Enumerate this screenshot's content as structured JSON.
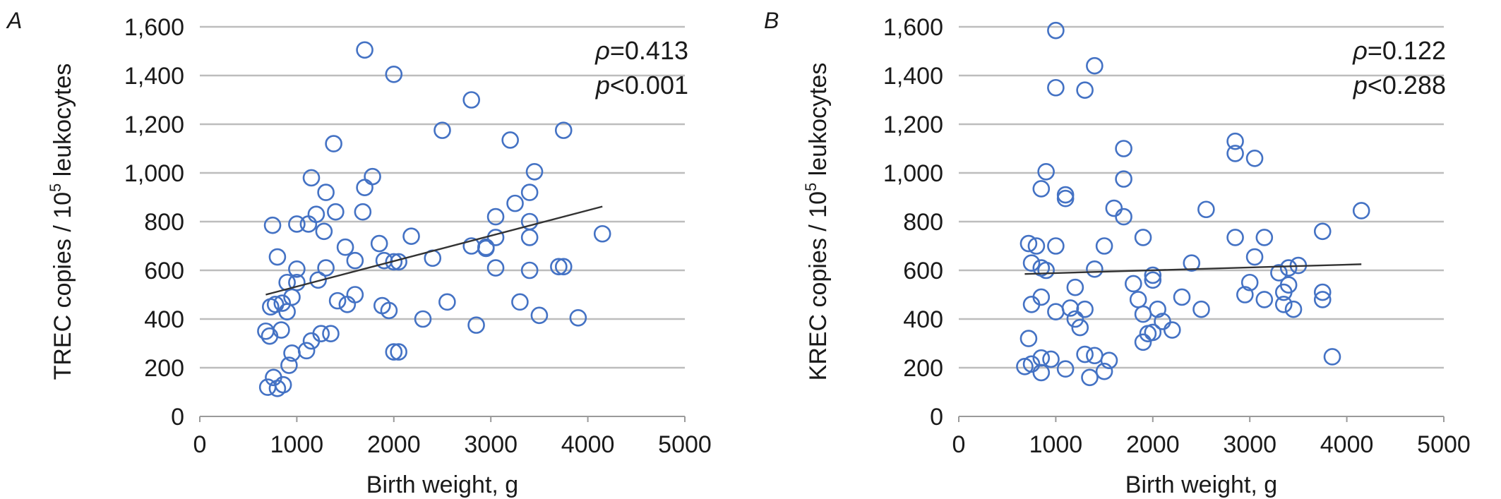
{
  "chart_data": [
    {
      "type": "scatter",
      "panel_label": "A",
      "xlabel": "Birth weight, g",
      "ylabel_main": "TREC copies / 10",
      "ylabel_sup": "5",
      "ylabel_tail": " leukocytes",
      "xlim": [
        0,
        5000
      ],
      "ylim": [
        0,
        1600
      ],
      "x_ticks": [
        "0",
        "1000",
        "2000",
        "3000",
        "4000",
        "5000"
      ],
      "y_ticks": [
        "0",
        "200",
        "400",
        "600",
        "800",
        "1,000",
        "1,200",
        "1,400",
        "1,600"
      ],
      "grid": true,
      "stat_rho_symbol": "ρ",
      "stat_rho": "=0.413",
      "stat_p_symbol": "p",
      "stat_p": "<0.001",
      "trendline": {
        "x": [
          680,
          4150
        ],
        "y": [
          500,
          862
        ]
      },
      "marker_color": "#4472c4",
      "points": [
        [
          1700,
          1505
        ],
        [
          2000,
          1405
        ],
        [
          2800,
          1300
        ],
        [
          2500,
          1175
        ],
        [
          3750,
          1175
        ],
        [
          1380,
          1120
        ],
        [
          3200,
          1135
        ],
        [
          3450,
          1005
        ],
        [
          1150,
          980
        ],
        [
          1780,
          985
        ],
        [
          1700,
          940
        ],
        [
          1300,
          920
        ],
        [
          3400,
          920
        ],
        [
          3250,
          875
        ],
        [
          3050,
          820
        ],
        [
          1200,
          830
        ],
        [
          1400,
          840
        ],
        [
          1680,
          840
        ],
        [
          3400,
          800
        ],
        [
          1000,
          790
        ],
        [
          1120,
          790
        ],
        [
          750,
          785
        ],
        [
          1280,
          760
        ],
        [
          3050,
          735
        ],
        [
          3400,
          735
        ],
        [
          2180,
          740
        ],
        [
          2800,
          700
        ],
        [
          2950,
          695
        ],
        [
          1850,
          710
        ],
        [
          1500,
          695
        ],
        [
          2950,
          690
        ],
        [
          800,
          655
        ],
        [
          1600,
          640
        ],
        [
          1900,
          640
        ],
        [
          2000,
          635
        ],
        [
          2050,
          635
        ],
        [
          2400,
          650
        ],
        [
          1300,
          610
        ],
        [
          1000,
          605
        ],
        [
          3050,
          610
        ],
        [
          3700,
          615
        ],
        [
          3750,
          615
        ],
        [
          3400,
          600
        ],
        [
          4150,
          750
        ],
        [
          900,
          550
        ],
        [
          1000,
          550
        ],
        [
          1220,
          560
        ],
        [
          1600,
          500
        ],
        [
          1420,
          475
        ],
        [
          1520,
          460
        ],
        [
          950,
          490
        ],
        [
          1880,
          455
        ],
        [
          2550,
          470
        ],
        [
          1950,
          435
        ],
        [
          3300,
          470
        ],
        [
          3500,
          415
        ],
        [
          780,
          460
        ],
        [
          850,
          465
        ],
        [
          730,
          450
        ],
        [
          900,
          430
        ],
        [
          2300,
          400
        ],
        [
          2850,
          375
        ],
        [
          3900,
          405
        ],
        [
          680,
          350
        ],
        [
          720,
          330
        ],
        [
          840,
          355
        ],
        [
          1150,
          310
        ],
        [
          1100,
          270
        ],
        [
          1250,
          340
        ],
        [
          1350,
          340
        ],
        [
          950,
          260
        ],
        [
          2000,
          265
        ],
        [
          2050,
          265
        ],
        [
          920,
          210
        ],
        [
          760,
          160
        ],
        [
          860,
          130
        ],
        [
          700,
          120
        ],
        [
          800,
          115
        ]
      ]
    },
    {
      "type": "scatter",
      "panel_label": "B",
      "xlabel": "Birth weight, g",
      "ylabel_main": "KREC copies / 10",
      "ylabel_sup": "5",
      "ylabel_tail": " leukocytes",
      "xlim": [
        0,
        5000
      ],
      "ylim": [
        0,
        1600
      ],
      "x_ticks": [
        "0",
        "1000",
        "2000",
        "3000",
        "4000",
        "5000"
      ],
      "y_ticks": [
        "0",
        "200",
        "400",
        "600",
        "800",
        "1,000",
        "1,200",
        "1,400",
        "1,600"
      ],
      "grid": true,
      "stat_rho_symbol": "ρ",
      "stat_rho": "=0.122",
      "stat_p_symbol": "p",
      "stat_p": "<0.288",
      "trendline": {
        "x": [
          680,
          4150
        ],
        "y": [
          585,
          625
        ]
      },
      "marker_color": "#4472c4",
      "points": [
        [
          1000,
          1585
        ],
        [
          1400,
          1440
        ],
        [
          1000,
          1350
        ],
        [
          1300,
          1340
        ],
        [
          2850,
          1130
        ],
        [
          2850,
          1080
        ],
        [
          3050,
          1060
        ],
        [
          1700,
          1100
        ],
        [
          1700,
          975
        ],
        [
          900,
          1005
        ],
        [
          1100,
          910
        ],
        [
          1100,
          895
        ],
        [
          850,
          935
        ],
        [
          1600,
          855
        ],
        [
          1700,
          820
        ],
        [
          2550,
          850
        ],
        [
          4150,
          845
        ],
        [
          3750,
          760
        ],
        [
          3150,
          735
        ],
        [
          2850,
          735
        ],
        [
          1900,
          735
        ],
        [
          720,
          710
        ],
        [
          1000,
          700
        ],
        [
          1500,
          700
        ],
        [
          800,
          700
        ],
        [
          3050,
          655
        ],
        [
          750,
          630
        ],
        [
          2400,
          630
        ],
        [
          850,
          610
        ],
        [
          1400,
          605
        ],
        [
          900,
          600
        ],
        [
          3500,
          620
        ],
        [
          3400,
          610
        ],
        [
          3300,
          590
        ],
        [
          2000,
          580
        ],
        [
          2000,
          560
        ],
        [
          1800,
          545
        ],
        [
          3000,
          550
        ],
        [
          3400,
          540
        ],
        [
          3350,
          510
        ],
        [
          3750,
          510
        ],
        [
          1200,
          530
        ],
        [
          2950,
          500
        ],
        [
          3150,
          480
        ],
        [
          3750,
          480
        ],
        [
          850,
          490
        ],
        [
          2300,
          490
        ],
        [
          1850,
          480
        ],
        [
          750,
          460
        ],
        [
          1000,
          430
        ],
        [
          1150,
          445
        ],
        [
          1300,
          440
        ],
        [
          2050,
          440
        ],
        [
          2500,
          440
        ],
        [
          3450,
          440
        ],
        [
          3350,
          460
        ],
        [
          1900,
          420
        ],
        [
          1200,
          400
        ],
        [
          2100,
          390
        ],
        [
          1250,
          365
        ],
        [
          2000,
          345
        ],
        [
          1950,
          340
        ],
        [
          2200,
          355
        ],
        [
          1900,
          305
        ],
        [
          720,
          320
        ],
        [
          3850,
          245
        ],
        [
          1300,
          255
        ],
        [
          1400,
          250
        ],
        [
          1550,
          230
        ],
        [
          850,
          240
        ],
        [
          950,
          235
        ],
        [
          750,
          215
        ],
        [
          680,
          205
        ],
        [
          1100,
          195
        ],
        [
          1500,
          185
        ],
        [
          850,
          180
        ],
        [
          1350,
          160
        ]
      ]
    }
  ]
}
